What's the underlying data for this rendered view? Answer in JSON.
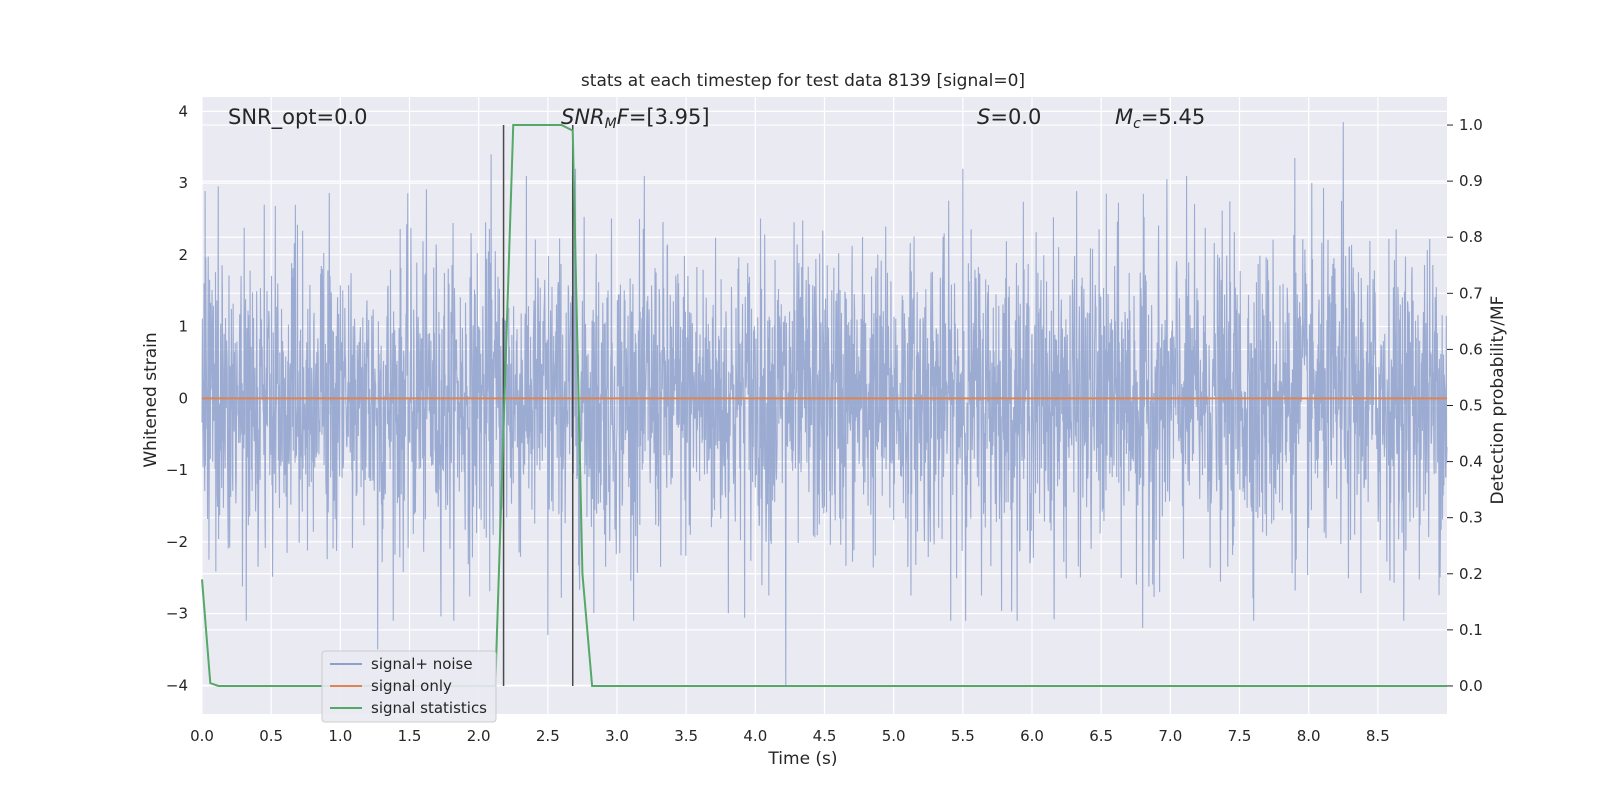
{
  "chart_data": {
    "type": "line",
    "title": "stats at each timestep for test data 8139 [signal=0]",
    "xlabel": "Time (s)",
    "ylabel": "Whitened strain",
    "y2label": "Detection probability/MF",
    "xlim": [
      0.0,
      9.0
    ],
    "ylim": [
      -4.4,
      4.2
    ],
    "y2lim": [
      -0.05,
      1.05
    ],
    "x_ticks": [
      "0.0",
      "0.5",
      "1.0",
      "1.5",
      "2.0",
      "2.5",
      "3.0",
      "3.5",
      "4.0",
      "4.5",
      "5.0",
      "5.5",
      "6.0",
      "6.5",
      "7.0",
      "7.5",
      "8.0",
      "8.5"
    ],
    "y_ticks": [
      "−4",
      "−3",
      "−2",
      "−1",
      "0",
      "1",
      "2",
      "3",
      "4"
    ],
    "y2_ticks": [
      "0.0",
      "0.1",
      "0.2",
      "0.3",
      "0.4",
      "0.5",
      "0.6",
      "0.7",
      "0.8",
      "0.9",
      "1.0"
    ],
    "grid": true,
    "annotations": [
      {
        "text": "SNR_opt=0.0",
        "x": 0.2,
        "y": 3.9
      },
      {
        "text": "SNR_MF=[3.95]",
        "x": 2.6,
        "y": 3.9
      },
      {
        "text": "S=0.0",
        "x": 5.6,
        "y": 3.9
      },
      {
        "text": "M_c=5.45",
        "x": 6.6,
        "y": 3.9
      }
    ],
    "vlines": [
      2.18,
      2.68
    ],
    "legend": {
      "position": "lower-left",
      "entries": [
        {
          "label": "signal+ noise",
          "color": "#8da0cb"
        },
        {
          "label": "signal only",
          "color": "#dd8452"
        },
        {
          "label": "signal statistics",
          "color": "#55a868"
        }
      ]
    },
    "series": [
      {
        "name": "signal+ noise",
        "axis": "left",
        "color": "#8da0cb",
        "note_values": "dense whitened noise, amplitude roughly within -3.5..3.8",
        "peaks": [
          {
            "x": 1.27,
            "y": 3.35
          },
          {
            "x": 1.27,
            "y": -3.5
          },
          {
            "x": 2.09,
            "y": 3.4
          },
          {
            "x": 2.7,
            "y": 3.2
          },
          {
            "x": 5.5,
            "y": 3.2
          },
          {
            "x": 8.25,
            "y": 3.85
          },
          {
            "x": 7.9,
            "y": 3.35
          },
          {
            "x": 4.22,
            "y": -4.0
          },
          {
            "x": 6.8,
            "y": -3.2
          },
          {
            "x": 2.5,
            "y": -3.3
          }
        ]
      },
      {
        "name": "signal only",
        "axis": "left",
        "color": "#dd8452",
        "x": [
          0.0,
          9.0
        ],
        "values": [
          0.0,
          0.0
        ]
      },
      {
        "name": "signal statistics",
        "axis": "right",
        "color": "#55a868",
        "x": [
          0.0,
          0.06,
          0.12,
          0.5,
          1.0,
          1.5,
          2.0,
          2.12,
          2.25,
          2.6,
          2.68,
          2.75,
          2.82,
          3.0,
          4.0,
          5.0,
          6.0,
          7.0,
          8.0,
          9.0
        ],
        "values": [
          0.19,
          0.005,
          0.0,
          0.0,
          0.0,
          0.0,
          0.0,
          0.0,
          1.0,
          1.0,
          0.99,
          0.2,
          0.0,
          0.0,
          0.0,
          0.0,
          0.0,
          0.0,
          0.0,
          0.0
        ]
      }
    ]
  }
}
